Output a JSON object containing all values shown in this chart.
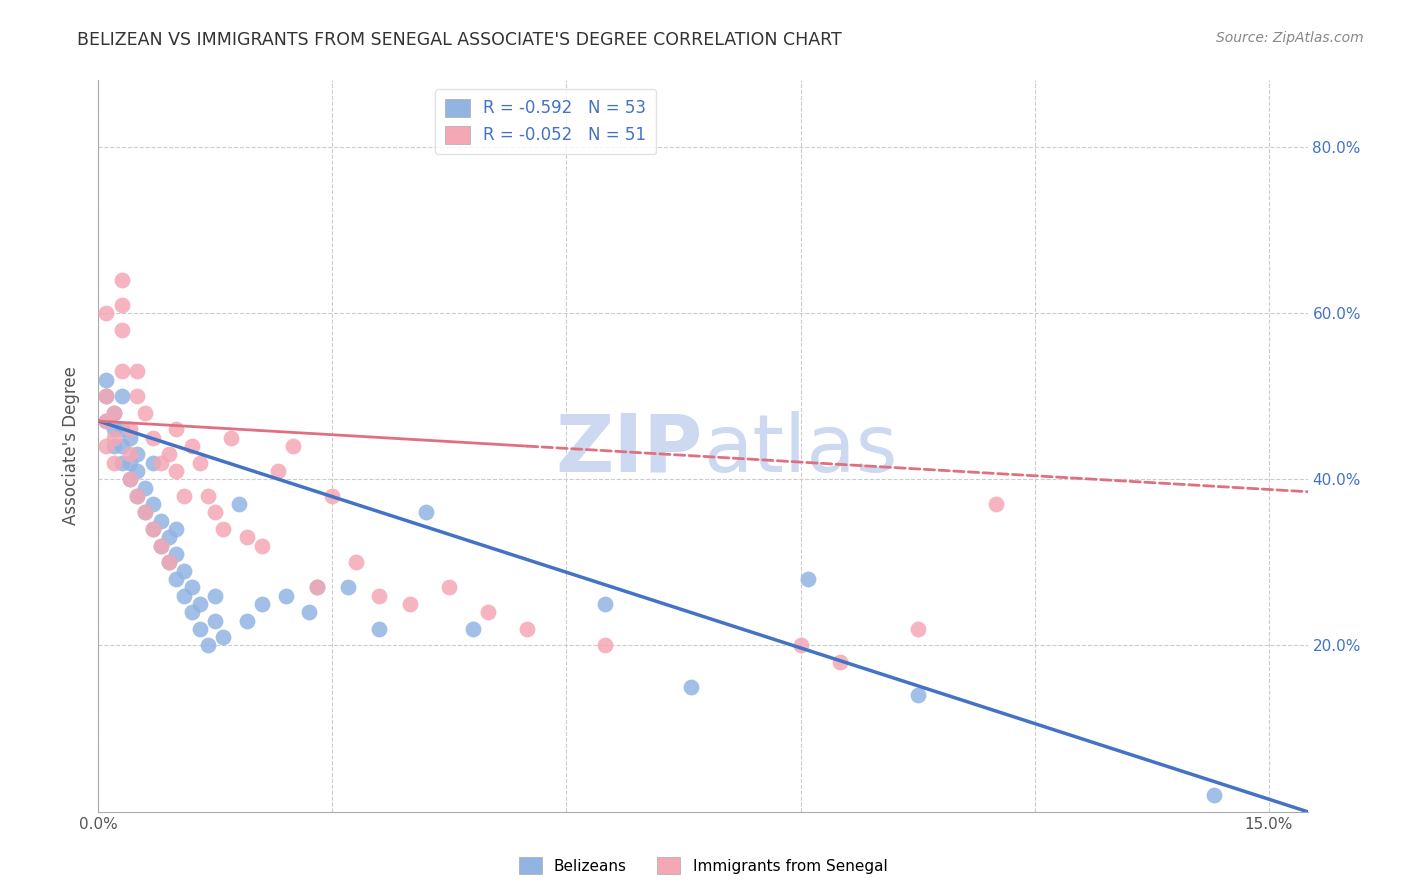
{
  "title": "BELIZEAN VS IMMIGRANTS FROM SENEGAL ASSOCIATE'S DEGREE CORRELATION CHART",
  "source": "Source: ZipAtlas.com",
  "ylabel": "Associate's Degree",
  "x_ticks": [
    0.0,
    0.03,
    0.06,
    0.09,
    0.12,
    0.15
  ],
  "x_tick_labels": [
    "0.0%",
    "",
    "",
    "",
    "",
    "15.0%"
  ],
  "y_ticks": [
    0.0,
    0.2,
    0.4,
    0.6,
    0.8
  ],
  "y_tick_labels_right": [
    "",
    "20.0%",
    "40.0%",
    "60.0%",
    "80.0%"
  ],
  "xlim": [
    0.0,
    0.155
  ],
  "ylim": [
    0.0,
    0.88
  ],
  "belizeans_color": "#92b4e3",
  "senegal_color": "#f4a7b4",
  "trendline_blue": "#4472c4",
  "trendline_pink": "#e07080",
  "watermark_color": "#ccd9f0",
  "legend_label1": "R = -0.592   N = 53",
  "legend_label2": "R = -0.052   N = 51",
  "legend_bottom1": "Belizeans",
  "legend_bottom2": "Immigrants from Senegal",
  "belizeans_x": [
    0.001,
    0.001,
    0.001,
    0.002,
    0.002,
    0.002,
    0.003,
    0.003,
    0.003,
    0.003,
    0.004,
    0.004,
    0.004,
    0.005,
    0.005,
    0.005,
    0.006,
    0.006,
    0.007,
    0.007,
    0.007,
    0.008,
    0.008,
    0.009,
    0.009,
    0.01,
    0.01,
    0.01,
    0.011,
    0.011,
    0.012,
    0.012,
    0.013,
    0.013,
    0.014,
    0.015,
    0.015,
    0.016,
    0.018,
    0.019,
    0.021,
    0.024,
    0.027,
    0.028,
    0.032,
    0.036,
    0.042,
    0.048,
    0.065,
    0.076,
    0.091,
    0.105,
    0.143
  ],
  "belizeans_y": [
    0.47,
    0.5,
    0.52,
    0.44,
    0.46,
    0.48,
    0.42,
    0.44,
    0.46,
    0.5,
    0.4,
    0.42,
    0.45,
    0.38,
    0.41,
    0.43,
    0.36,
    0.39,
    0.34,
    0.37,
    0.42,
    0.32,
    0.35,
    0.3,
    0.33,
    0.28,
    0.31,
    0.34,
    0.26,
    0.29,
    0.24,
    0.27,
    0.22,
    0.25,
    0.2,
    0.23,
    0.26,
    0.21,
    0.37,
    0.23,
    0.25,
    0.26,
    0.24,
    0.27,
    0.27,
    0.22,
    0.36,
    0.22,
    0.25,
    0.15,
    0.28,
    0.14,
    0.02
  ],
  "senegal_x": [
    0.001,
    0.001,
    0.001,
    0.001,
    0.002,
    0.002,
    0.002,
    0.003,
    0.003,
    0.003,
    0.003,
    0.004,
    0.004,
    0.004,
    0.005,
    0.005,
    0.005,
    0.006,
    0.006,
    0.007,
    0.007,
    0.008,
    0.008,
    0.009,
    0.009,
    0.01,
    0.01,
    0.011,
    0.012,
    0.013,
    0.014,
    0.015,
    0.016,
    0.017,
    0.019,
    0.021,
    0.023,
    0.025,
    0.028,
    0.03,
    0.033,
    0.036,
    0.04,
    0.045,
    0.05,
    0.055,
    0.065,
    0.09,
    0.095,
    0.105,
    0.115
  ],
  "senegal_y": [
    0.44,
    0.47,
    0.5,
    0.6,
    0.42,
    0.45,
    0.48,
    0.53,
    0.58,
    0.61,
    0.64,
    0.4,
    0.43,
    0.46,
    0.5,
    0.53,
    0.38,
    0.36,
    0.48,
    0.34,
    0.45,
    0.32,
    0.42,
    0.3,
    0.43,
    0.46,
    0.41,
    0.38,
    0.44,
    0.42,
    0.38,
    0.36,
    0.34,
    0.45,
    0.33,
    0.32,
    0.41,
    0.44,
    0.27,
    0.38,
    0.3,
    0.26,
    0.25,
    0.27,
    0.24,
    0.22,
    0.2,
    0.2,
    0.18,
    0.22,
    0.37
  ],
  "blue_trend_x0": 0.0,
  "blue_trend_y0": 0.47,
  "blue_trend_x1": 0.155,
  "blue_trend_y1": 0.0,
  "pink_trend_x0": 0.0,
  "pink_trend_y0": 0.47,
  "pink_trend_x1": 0.155,
  "pink_trend_y1": 0.385
}
